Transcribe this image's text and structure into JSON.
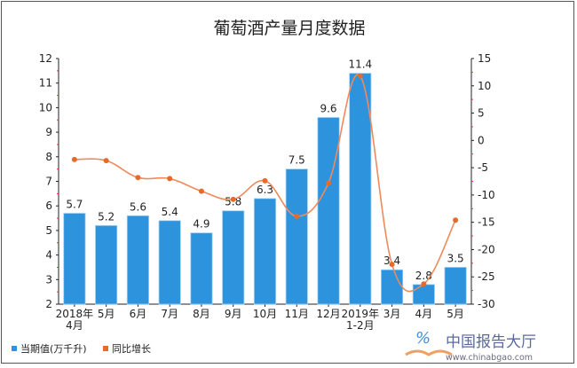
{
  "chart_data": {
    "type": "bar+line",
    "title": "葡萄酒产量月度数据",
    "categories": [
      "2018年\n4月",
      "5月",
      "6月",
      "7月",
      "8月",
      "9月",
      "10月",
      "11月",
      "12月",
      "2019年\n1-2月",
      "3月",
      "4月",
      "5月"
    ],
    "series": [
      {
        "name": "当期值(万千升)",
        "type": "bar",
        "axis": "left",
        "color": "#2e93dd",
        "values": [
          5.7,
          5.2,
          5.6,
          5.4,
          4.9,
          5.8,
          6.3,
          7.5,
          9.6,
          11.4,
          3.4,
          2.8,
          3.5
        ]
      },
      {
        "name": "同比增长",
        "type": "line",
        "axis": "right",
        "color": "#e8692c",
        "values": [
          -3.5,
          -3.7,
          -6.8,
          -7.0,
          -9.3,
          -10.8,
          -7.4,
          -13.9,
          -7.8,
          11.8,
          -22.7,
          -26.3,
          -14.6
        ]
      }
    ],
    "y_left": {
      "min": 2,
      "max": 12,
      "ticks": [
        2,
        3,
        4,
        5,
        6,
        7,
        8,
        9,
        10,
        11,
        12
      ]
    },
    "y_right": {
      "min": -30,
      "max": 15,
      "ticks": [
        -30,
        -25,
        -20,
        -15,
        -10,
        -5,
        0,
        5,
        10,
        15
      ]
    },
    "grid": false,
    "legend": "bottom-left"
  },
  "watermark": {
    "name": "中国报告大厅",
    "url": "www.chinabgao.com"
  }
}
